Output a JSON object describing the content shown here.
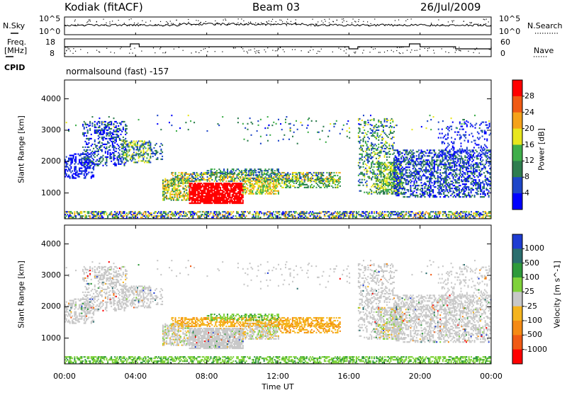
{
  "header": {
    "station": "Kodiak (fitACF)",
    "beam": "Beam 03",
    "date": "26/Jul/2009"
  },
  "strip": {
    "nsky_label": "N.Sky",
    "nsky_ticks": [
      "10^5",
      "10^0"
    ],
    "nsearch_label": "N.Search",
    "nsearch_ticks": [
      "10^5",
      "10^0"
    ],
    "freq_label_1": "Freq.",
    "freq_label_2": "[MHz]",
    "freq_ticks": [
      "18",
      "8"
    ],
    "nave_label": "Nave",
    "nave_ticks": [
      "60",
      "0"
    ],
    "cpid_label": "CPID",
    "cpid_value": "normalsound (fast) -157"
  },
  "chart_data": [
    {
      "type": "heatmap",
      "name": "power",
      "xlabel": "Time UT",
      "ylabel": "Slant Range [km]",
      "x_ticks": [
        "00:00",
        "04:00",
        "08:00",
        "12:00",
        "16:00",
        "20:00",
        "00:00"
      ],
      "x_range_hours": [
        0,
        24
      ],
      "y_ticks": [
        "1000",
        "2000",
        "3000",
        "4000"
      ],
      "ylim": [
        180,
        4600
      ],
      "colorbar": {
        "label": "Power [dB]",
        "ticks": [
          "4",
          "8",
          "12",
          "16",
          "20",
          "24",
          "28"
        ],
        "colors": [
          "#0000ff",
          "#1e46c8",
          "#2e7d4f",
          "#3fae4a",
          "#e8e61e",
          "#f5a21a",
          "#f05a14",
          "#ff0000"
        ]
      }
    },
    {
      "type": "heatmap",
      "name": "velocity",
      "xlabel": "Time UT",
      "ylabel": "Slant Range [km]",
      "x_ticks": [
        "00:00",
        "04:00",
        "08:00",
        "12:00",
        "16:00",
        "20:00",
        "00:00"
      ],
      "x_range_hours": [
        0,
        24
      ],
      "y_ticks": [
        "1000",
        "2000",
        "3000",
        "4000"
      ],
      "ylim": [
        180,
        4600
      ],
      "colorbar": {
        "label": "Velocity [m s^-1]",
        "ticks": [
          "1000",
          "500",
          "100",
          "25",
          "-25",
          "-100",
          "-500",
          "-1000"
        ],
        "colors": [
          "#1e3cd2",
          "#2a6e6e",
          "#2e9a3a",
          "#7fd23a",
          "#c8c8c8",
          "#f5b41e",
          "#f58a14",
          "#f05a14",
          "#ff0000"
        ]
      }
    }
  ],
  "colors": {
    "axis": "#000000",
    "gray_scatter": "#c8c8c8"
  }
}
